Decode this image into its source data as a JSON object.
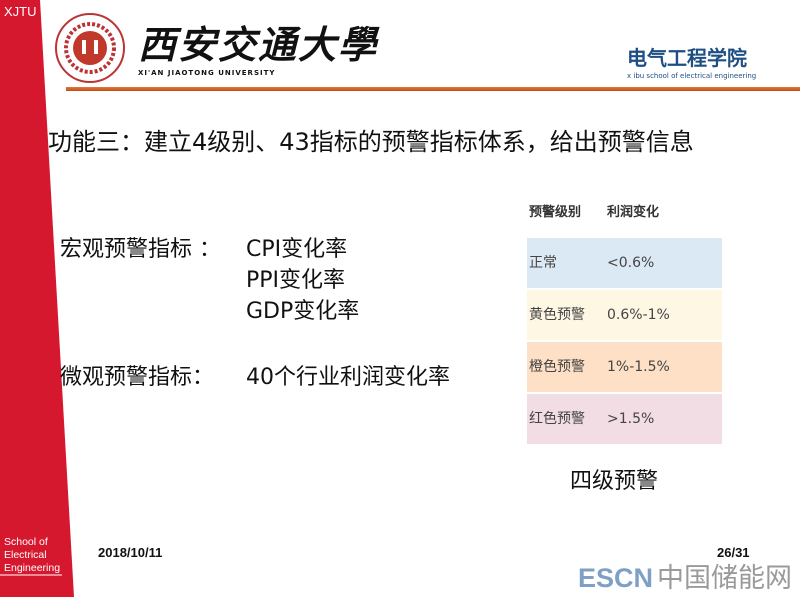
{
  "sidebar": {
    "badge": "XJTU",
    "school_lines": [
      "School of",
      "Electrical",
      "Engineering"
    ],
    "color": "#d6182f"
  },
  "header": {
    "university_cn": "西安交通大學",
    "university_en": "XI'AN JIAOTONG UNIVERSITY",
    "school_cn": "电气工程学院",
    "school_en": "x ibu school of electrical engineering"
  },
  "title": "功能三：建立4级别、43指标的预警指标体系，给出预警信息",
  "macro": {
    "label": "宏观预警指标 ：",
    "items": [
      "CPI变化率",
      "PPI变化率",
      "GDP变化率"
    ]
  },
  "micro": {
    "label": "微观预警指标：",
    "value": "40个行业利润变化率"
  },
  "table": {
    "headers": [
      "预警级别",
      "利润变化"
    ],
    "rows": [
      {
        "level": "正常",
        "change": "<0.6%",
        "color": "#dbe9f5"
      },
      {
        "level": "黄色预警",
        "change": "0.6%-1%",
        "color": "#fdf7e3"
      },
      {
        "level": "橙色预警",
        "change": "1%-1.5%",
        "color": "#fde0c6"
      },
      {
        "level": "红色预警",
        "change": ">1.5%",
        "color": "#f1dde3"
      }
    ]
  },
  "caption": "四级预警",
  "footer": {
    "date": "2018/10/11",
    "page": "26/31"
  },
  "watermark": {
    "brand": "ESCN",
    "name": "中国储能网"
  }
}
